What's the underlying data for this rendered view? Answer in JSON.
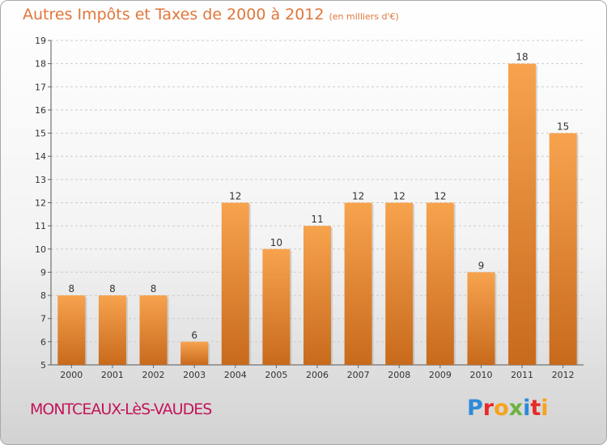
{
  "title": "Autres Impôts et Taxes de 2000 à 2012",
  "title_unit": "(en milliers d'€)",
  "place": "MONTCEAUX-LèS-VAUDES",
  "logo": {
    "text": "Proxiti",
    "letters": [
      {
        "ch": "P",
        "color": "#2e8ad8"
      },
      {
        "ch": "r",
        "color": "#e8282a"
      },
      {
        "ch": "o",
        "color": "#f7a21b"
      },
      {
        "ch": "x",
        "color": "#6cb33f"
      },
      {
        "ch": "i",
        "color": "#2e8ad8"
      },
      {
        "ch": "t",
        "color": "#e8282a"
      },
      {
        "ch": "i",
        "color": "#f7a21b"
      }
    ]
  },
  "colors": {
    "bar_top": "#f7a34e",
    "bar_bottom": "#c86a1c",
    "title": "#e0763a",
    "place": "#c4145a"
  },
  "chart_data": {
    "type": "bar",
    "categories": [
      "2000",
      "2001",
      "2002",
      "2003",
      "2004",
      "2005",
      "2006",
      "2007",
      "2008",
      "2009",
      "2010",
      "2011",
      "2012"
    ],
    "values": [
      8,
      8,
      8,
      6,
      12,
      10,
      11,
      12,
      12,
      12,
      9,
      18,
      15
    ],
    "data_labels": [
      "8",
      "8",
      "8",
      "6",
      "12",
      "10",
      "11",
      "12",
      "12",
      "12",
      "9",
      "18",
      "15"
    ],
    "yticks": [
      "5",
      "6",
      "7",
      "8",
      "9",
      "10",
      "11",
      "12",
      "13",
      "14",
      "15",
      "16",
      "17",
      "18",
      "19"
    ],
    "ylim": [
      5,
      19
    ],
    "grid": true
  }
}
